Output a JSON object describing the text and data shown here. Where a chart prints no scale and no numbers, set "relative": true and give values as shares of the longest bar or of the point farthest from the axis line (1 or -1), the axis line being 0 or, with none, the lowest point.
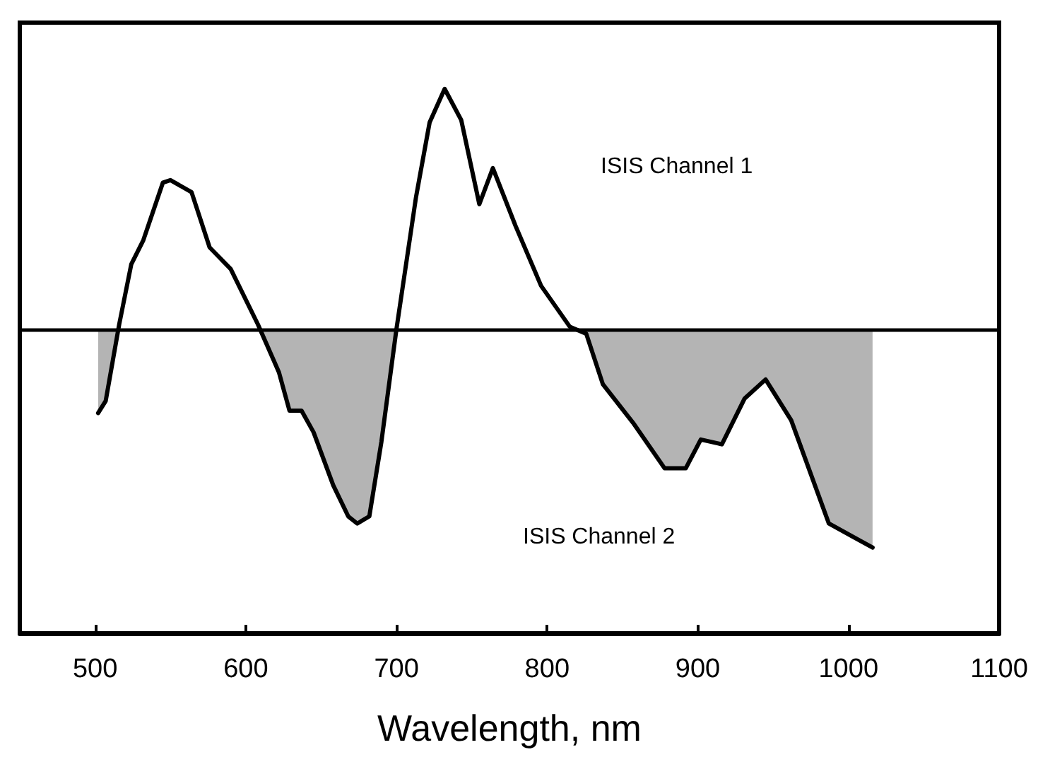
{
  "chart_data": {
    "type": "area",
    "relative": true,
    "xlabel": "Wavelength, nm",
    "annotations": [
      "ISIS Channel 1",
      "ISIS Channel 2"
    ],
    "x": [
      502,
      507,
      516,
      524,
      532,
      545,
      550,
      564,
      576,
      590,
      608,
      622,
      629,
      637,
      645,
      658,
      668,
      674,
      682,
      690,
      700,
      713,
      722,
      732,
      743,
      755,
      764,
      779,
      796,
      815,
      826,
      837,
      857,
      878,
      892,
      902,
      916,
      931,
      945,
      962,
      987,
      1016
    ],
    "series": [
      {
        "color": "#000000",
        "values": [
          -0.35,
          -0.3,
          0.02,
          0.27,
          0.37,
          0.61,
          0.62,
          0.57,
          0.34,
          0.25,
          0.02,
          -0.18,
          -0.34,
          -0.34,
          -0.43,
          -0.65,
          -0.78,
          -0.81,
          -0.78,
          -0.47,
          0,
          0.55,
          0.86,
          1,
          0.87,
          0.52,
          0.67,
          0.43,
          0.18,
          0.01,
          -0.02,
          -0.23,
          -0.39,
          -0.58,
          -0.58,
          -0.46,
          -0.48,
          -0.29,
          -0.21,
          -0.38,
          -0.81,
          -0.91
        ]
      }
    ],
    "xlim": [
      450,
      1100
    ],
    "xticks": [
      500,
      600,
      700,
      800,
      900,
      1000,
      1100
    ],
    "ref_lines": [
      {
        "axis": "y",
        "value": 0,
        "color": "#000000"
      }
    ],
    "grid": false,
    "marker": "none",
    "line_style": "solid"
  }
}
